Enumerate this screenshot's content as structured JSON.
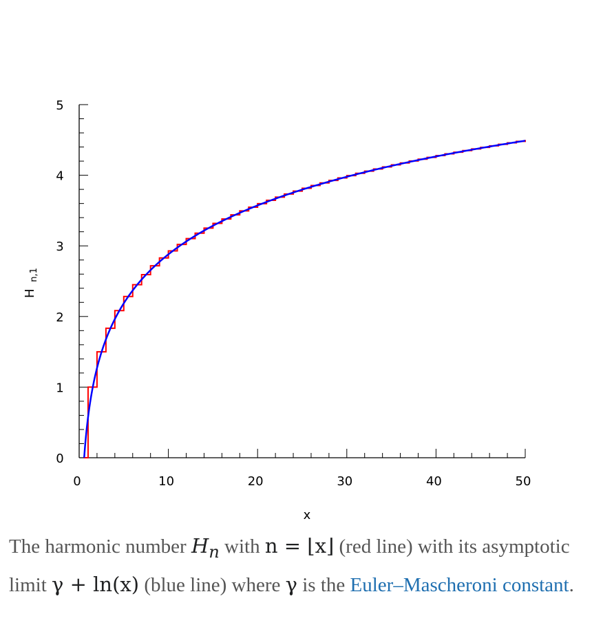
{
  "chart_data": {
    "type": "line",
    "xlabel": "x",
    "ylabel": "H",
    "ylabel_sub": "n,1",
    "xlim": [
      0,
      50
    ],
    "ylim": [
      0,
      5
    ],
    "xticks": [
      "0",
      "10",
      "20",
      "30",
      "40",
      "50"
    ],
    "yticks": [
      "0",
      "1",
      "2",
      "3",
      "4",
      "5"
    ],
    "grid": false,
    "series": [
      {
        "kind": "step",
        "color": "#ff0000",
        "n_from": 1,
        "n_to": 50
      },
      {
        "kind": "function",
        "color": "#0000ff",
        "gamma": 0.5772156649
      }
    ]
  },
  "caption": {
    "part1": "The harmonic number ",
    "math_H": "H",
    "math_n": "n",
    "part2": " with ",
    "math_eq": "n = ⌊x⌋",
    "part3": " (red line) with its asymptotic limit ",
    "math_limit": "γ + ln(x)",
    "part4": " (blue line) where ",
    "math_gamma": "γ",
    "part5": " is the ",
    "link_text": "Euler–Mascheroni constant",
    "part6": "."
  }
}
